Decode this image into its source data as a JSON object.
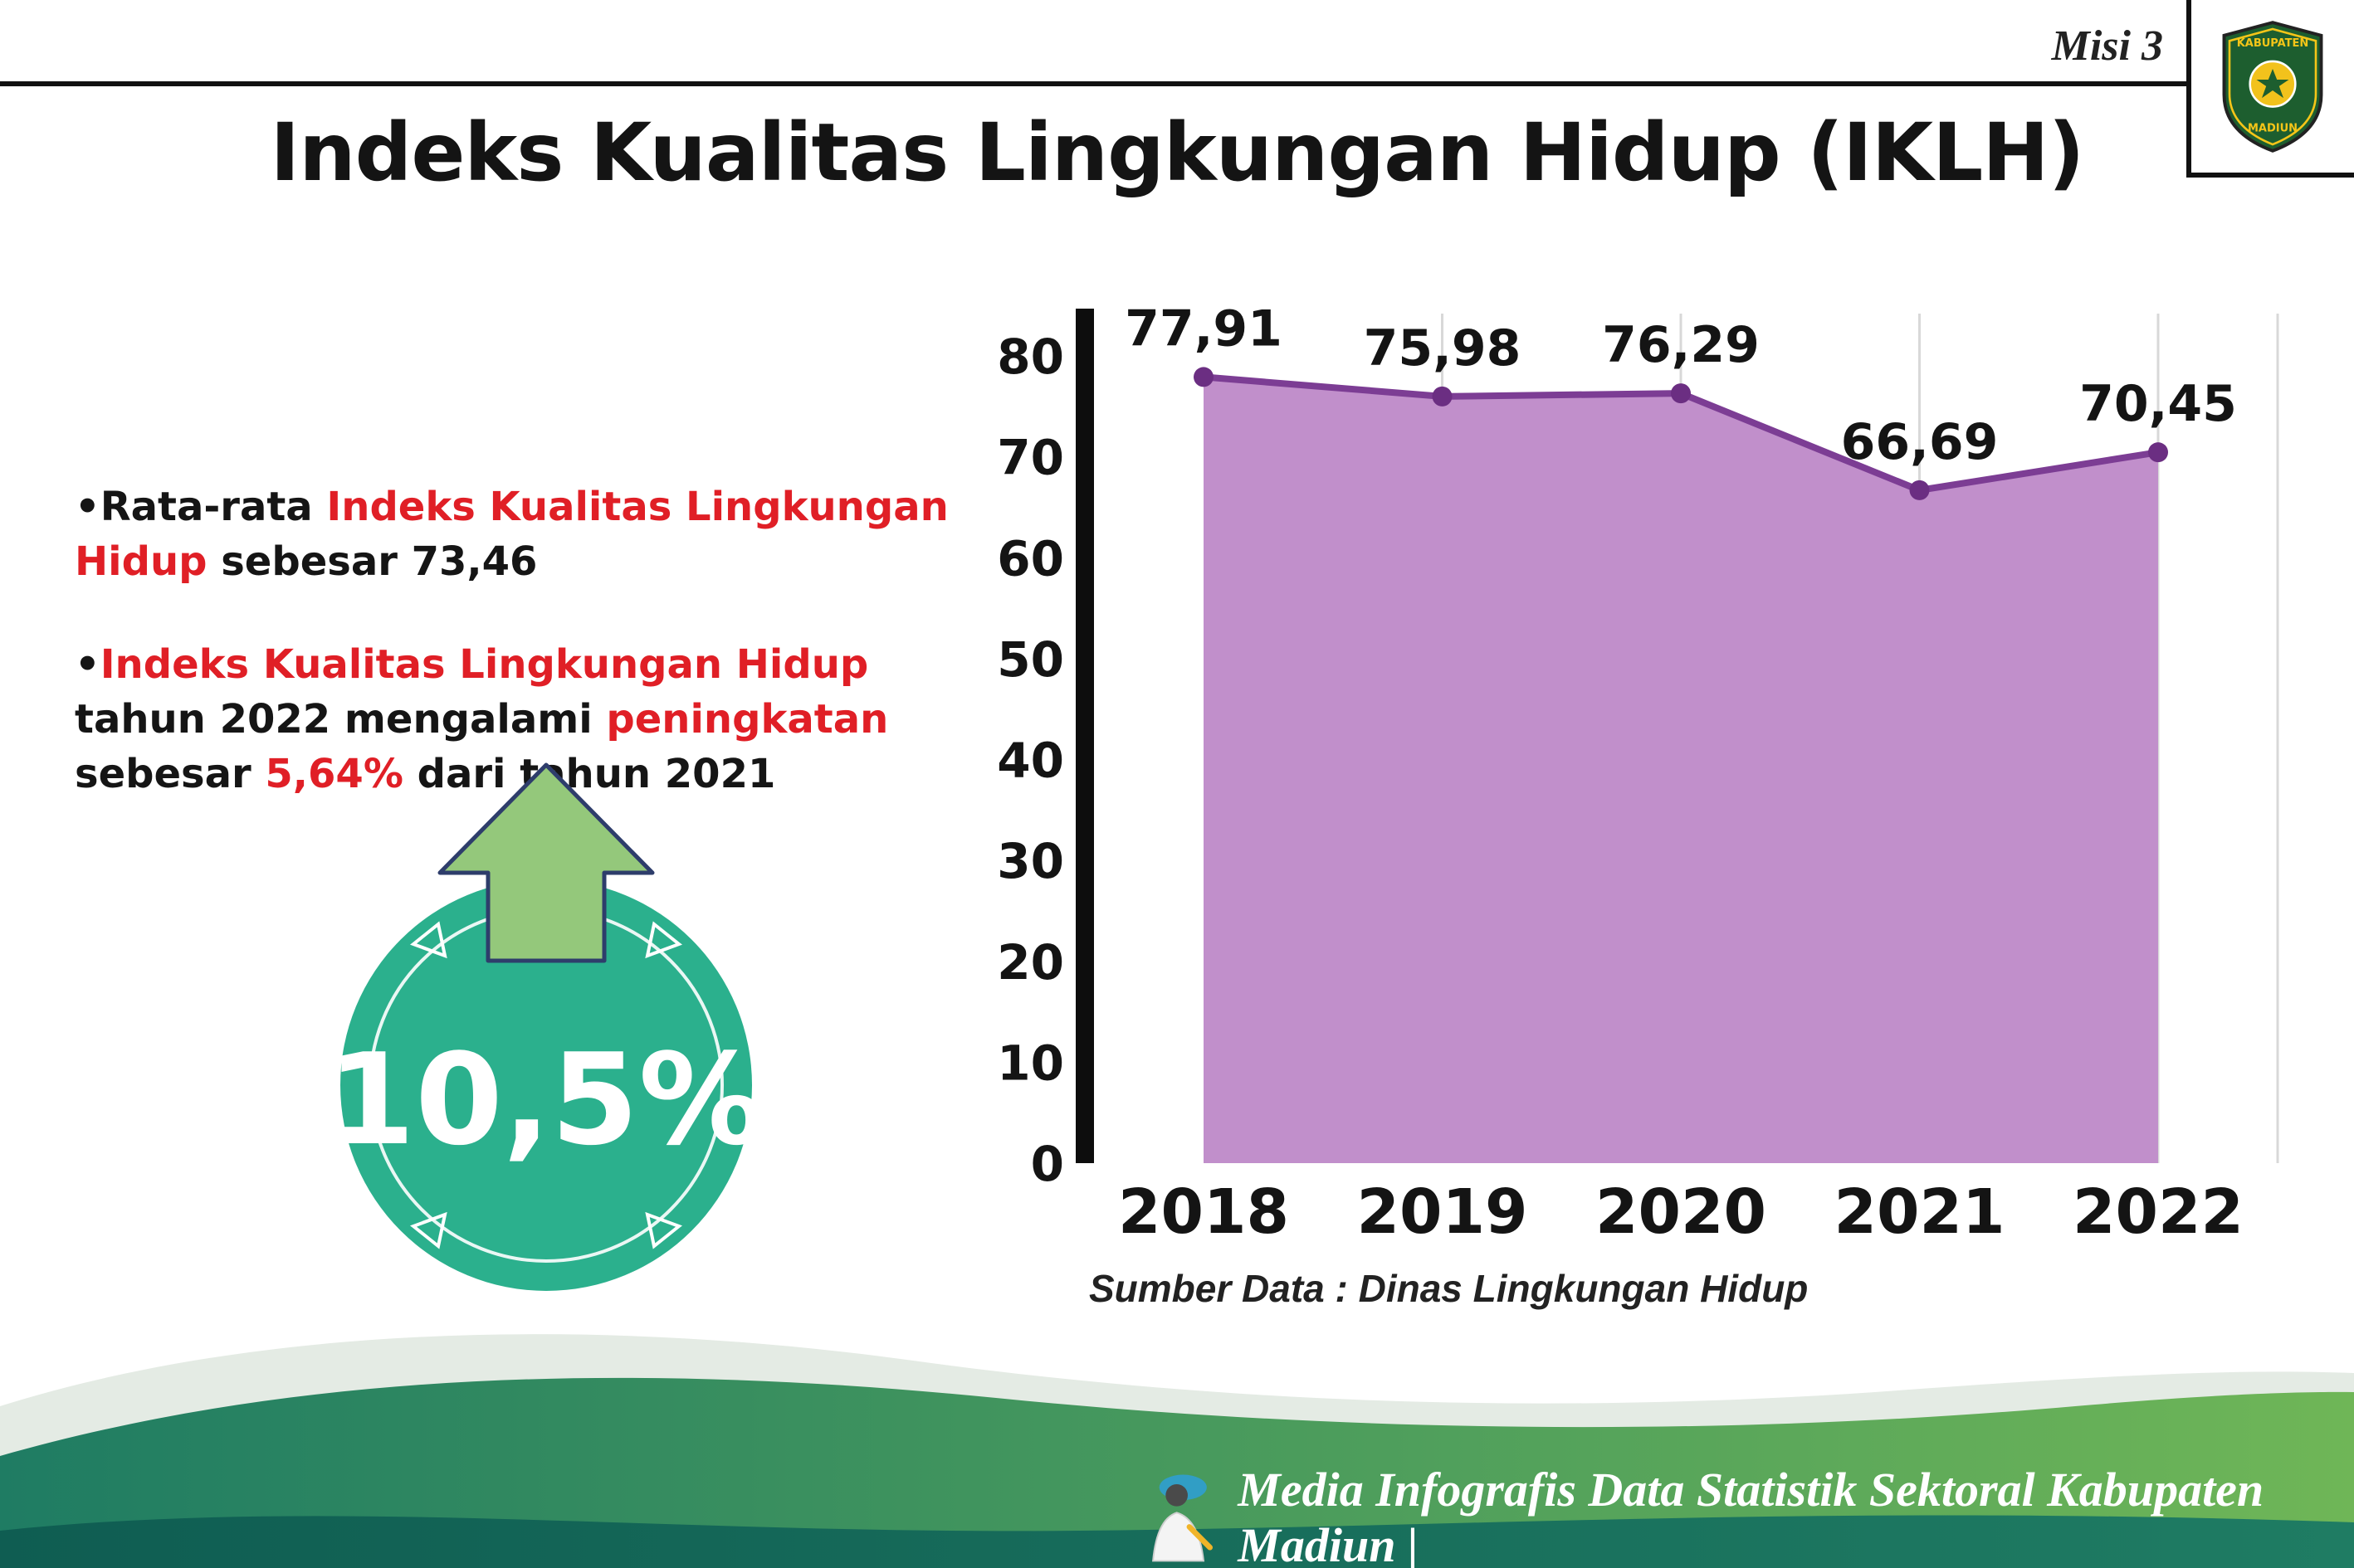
{
  "header": {
    "misi_label": "Misi 3",
    "title": "Indeks Kualitas Lingkungan Hidup (IKLH)",
    "logo": {
      "top_text": "KABUPATEN",
      "bottom_text": "MADIUN"
    }
  },
  "bullets": [
    {
      "segments": [
        {
          "text": "Rata-rata ",
          "color": "black"
        },
        {
          "text": "Indeks Kualitas Lingkungan Hidup",
          "color": "red"
        },
        {
          "text": " sebesar 73,46",
          "color": "black"
        }
      ]
    },
    {
      "segments": [
        {
          "text": "Indeks Kualitas Lingkungan Hidup",
          "color": "red"
        },
        {
          "text": " tahun 2022 mengalami ",
          "color": "black"
        },
        {
          "text": "peningkatan",
          "color": "red"
        },
        {
          "text": " sebesar ",
          "color": "black"
        },
        {
          "text": "5,64%",
          "color": "red"
        },
        {
          "text": " dari tahun 2021",
          "color": "black"
        }
      ]
    }
  ],
  "badge": {
    "value": "10,5%",
    "direction": "up"
  },
  "chart_data": {
    "type": "area",
    "categories": [
      "2018",
      "2019",
      "2020",
      "2021",
      "2022"
    ],
    "values": [
      77.91,
      75.98,
      76.29,
      66.69,
      70.45
    ],
    "value_labels": [
      "77,91",
      "75,98",
      "76,29",
      "66,69",
      "70,45"
    ],
    "ylim": [
      0,
      80
    ],
    "yticks": [
      0,
      10,
      20,
      30,
      40,
      50,
      60,
      70,
      80
    ],
    "grid": "vertical-light",
    "legend": "none",
    "line_color": "#7c3d94",
    "point_color": "#6b2e82",
    "fill_color": "#c18fcb",
    "source": "Sumber Data : Dinas Lingkungan Hidup"
  },
  "footer": {
    "text": "Media Infografis Data Statistik Sektoral Kabupaten Madiun |"
  },
  "colors": {
    "highlight_red": "#e01f26",
    "badge_teal": "#2bb08d",
    "badge_arrow_green": "#94c87b",
    "footer_dark_teal": "#0f5d52",
    "footer_mid_green": "#1f7c63",
    "footer_light_green": "#6fb657"
  }
}
